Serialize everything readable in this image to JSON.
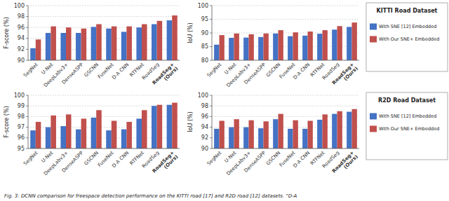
{
  "chart_data": [
    {
      "type": "bar",
      "categories": [
        "SegNet",
        "U-Net",
        "DeepLabv3+",
        "DenseASPP",
        "GSCNN",
        "FuseNet",
        "D-A CNN",
        "RTFNet",
        "RoadSeg",
        "RoadSeg+\n(Ours)"
      ],
      "series": [
        {
          "name": "With SNE [12] Embedded",
          "color": "#4472C4",
          "values": [
            92.2,
            95.0,
            95.0,
            95.0,
            96.1,
            95.8,
            95.2,
            96.0,
            96.6,
            97.3
          ]
        },
        {
          "name": "With Our SNE+ Embedded",
          "color": "#C0504D",
          "values": [
            93.8,
            96.2,
            96.0,
            95.8,
            96.6,
            96.2,
            96.2,
            96.6,
            97.2,
            98.2
          ]
        }
      ],
      "y_label": "F-score (%)",
      "ylim": [
        90,
        100
      ],
      "yticks": [
        90,
        92,
        94,
        96,
        98,
        100
      ],
      "grid": true,
      "legend": "right",
      "annotations": [
        "KITTI Road Dataset"
      ]
    },
    {
      "type": "bar",
      "categories": [
        "SegNet",
        "U-Net",
        "DeepLabv3+",
        "DenseASPP",
        "GSCNN",
        "FuseNet",
        "D-A CNN",
        "RTFNet",
        "RoadSeg",
        "RoadSeg+\n(Ours)"
      ],
      "series": [
        {
          "color": "#4472C4",
          "values": [
            85.7,
            88.2,
            88.3,
            88.5,
            89.8,
            88.8,
            89.0,
            89.7,
            91.2,
            92.2
          ]
        },
        {
          "color": "#C0504D",
          "values": [
            89.2,
            89.8,
            89.5,
            89.8,
            91.0,
            90.2,
            90.5,
            91.0,
            92.5,
            93.8
          ]
        }
      ],
      "y_label": "IoU (%)",
      "ylim": [
        80,
        100
      ],
      "yticks": [
        80,
        85,
        90,
        95,
        100
      ],
      "grid": true
    },
    {
      "type": "bar",
      "categories": [
        "SegNet",
        "U-Net",
        "DeepLabv3+",
        "DenseASPP",
        "GSCNN",
        "FuseNet",
        "D-A CNN",
        "RTFNet",
        "RoadSeg",
        "RoadSeg+\n(Ours)"
      ],
      "series": [
        {
          "name": "With SNE [12] Embedded",
          "color": "#4472C4",
          "values": [
            96.7,
            97.0,
            97.1,
            96.8,
            97.9,
            96.7,
            96.8,
            97.8,
            99.0,
            99.1
          ]
        },
        {
          "name": "With Our SNE+ Embedded",
          "color": "#C0504D",
          "values": [
            97.5,
            98.1,
            98.2,
            97.8,
            98.6,
            97.6,
            97.5,
            98.6,
            99.1,
            99.3
          ]
        }
      ],
      "y_label": "F-score (%)",
      "ylim": [
        95,
        100
      ],
      "yticks": [
        95,
        96,
        97,
        98,
        99,
        100
      ],
      "grid": true,
      "legend": "right",
      "annotations": [
        "R2D Road Dataset"
      ]
    },
    {
      "type": "bar",
      "categories": [
        "SegNet",
        "U-Net",
        "DeepLabv3+",
        "DenseASPP",
        "GSCNN",
        "FuseNet",
        "D-A CNN",
        "RTFNet",
        "RoadSeg",
        "RoadSeg+\n(Ours)"
      ],
      "series": [
        {
          "color": "#4472C4",
          "values": [
            93.7,
            94.0,
            94.0,
            93.8,
            95.5,
            93.7,
            93.7,
            95.4,
            96.5,
            96.9
          ]
        },
        {
          "color": "#C0504D",
          "values": [
            95.2,
            95.5,
            95.3,
            95.1,
            96.5,
            95.3,
            95.2,
            96.4,
            97.0,
            97.4
          ]
        }
      ],
      "y_label": "IoU (%)",
      "ylim": [
        90,
        100
      ],
      "yticks": [
        90,
        92,
        94,
        96,
        98,
        100
      ],
      "grid": true
    }
  ],
  "caption": "Fig. 3: DCNN comparison for freespace detection performance on the KITTI road [17] and R2D road [12] datasets. \"D-A"
}
